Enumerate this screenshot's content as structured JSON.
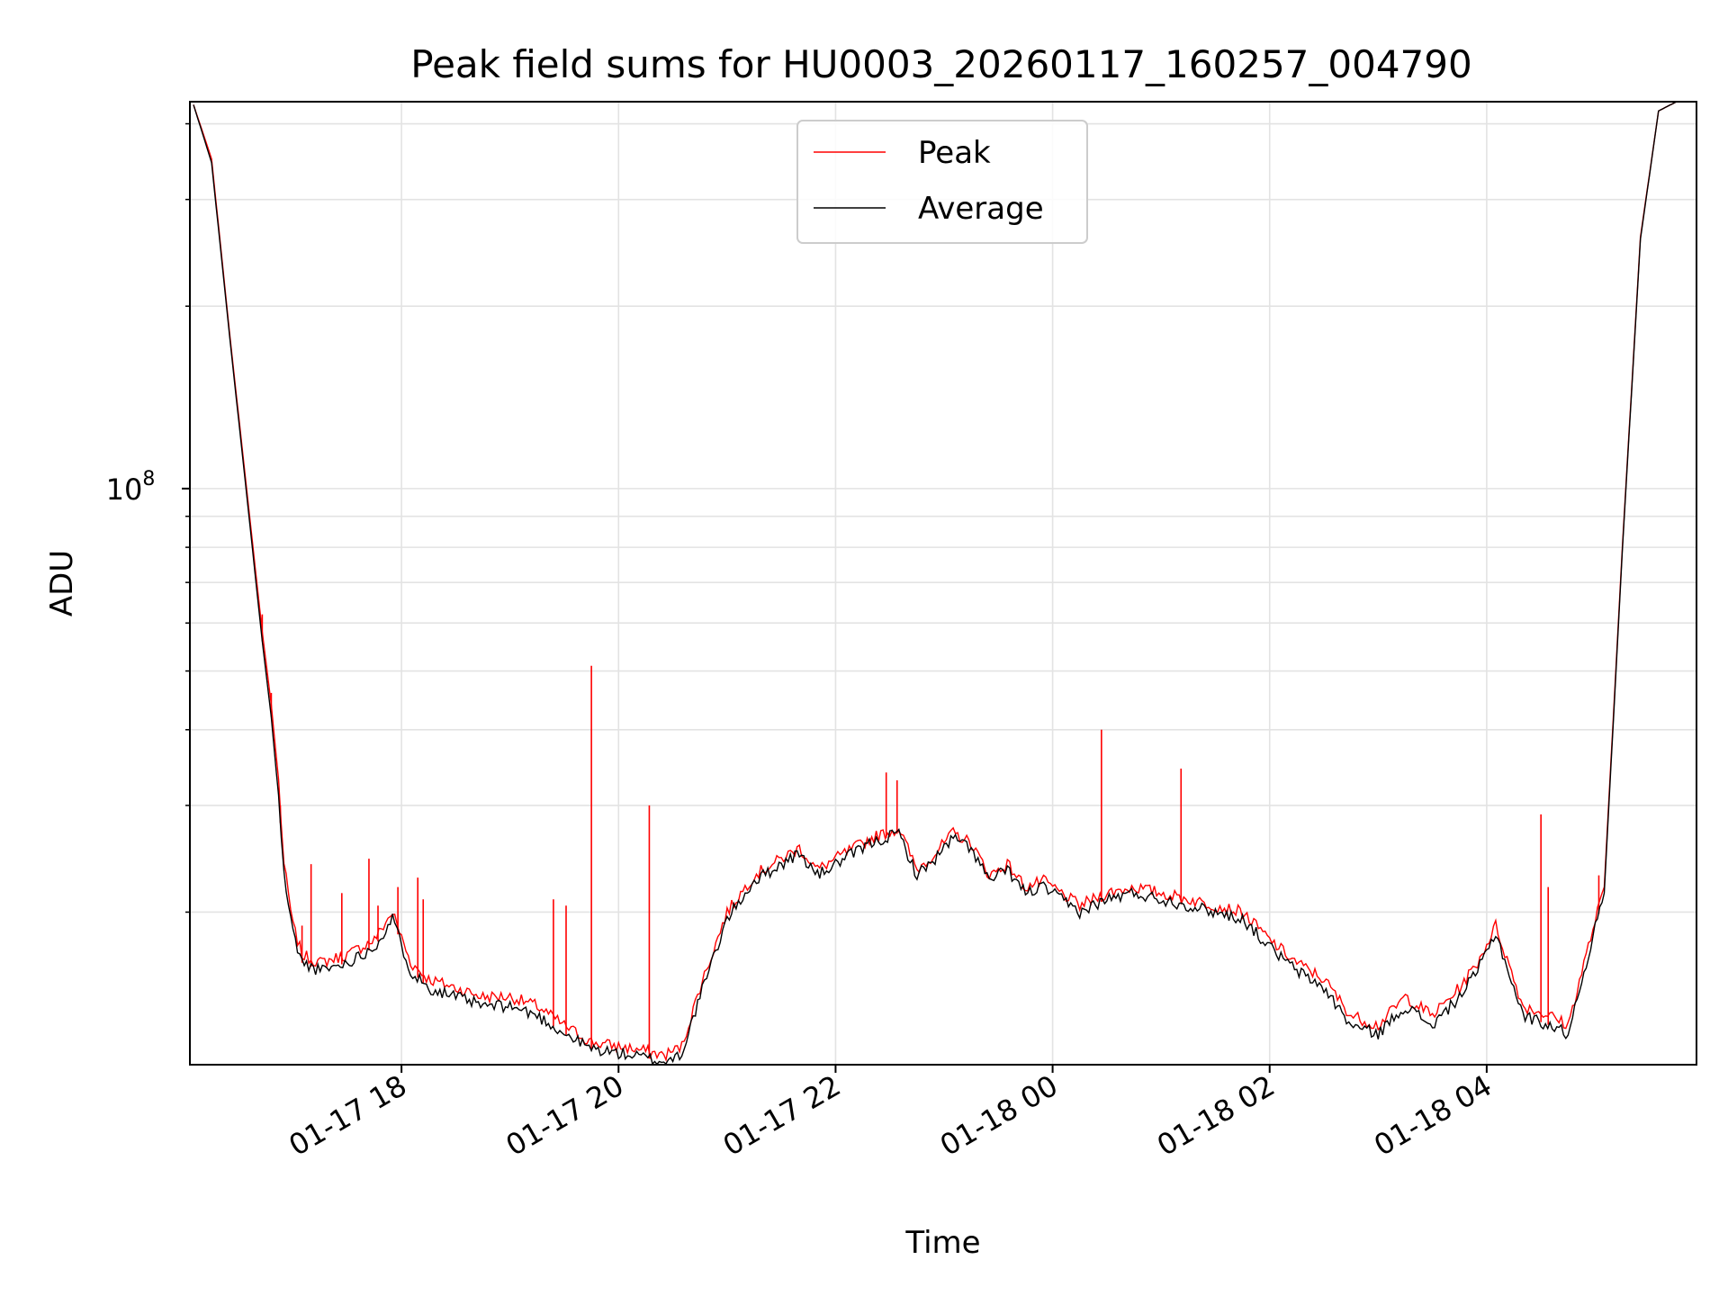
{
  "chart_data": {
    "type": "line",
    "title": "Peak field sums for HU0003_20260117_160257_004790",
    "xlabel": "Time",
    "ylabel": "ADU",
    "y_scale": "log",
    "xlim": [
      "2026-01-17 16:03",
      "2026-01-18 05:56"
    ],
    "ylim": [
      11200000,
      435000000
    ],
    "grid": true,
    "legend_position": "upper center",
    "x_ticks": [
      {
        "value": "2026-01-17 18:00",
        "label": "01-17 18"
      },
      {
        "value": "2026-01-17 20:00",
        "label": "01-17 20"
      },
      {
        "value": "2026-01-17 22:00",
        "label": "01-17 22"
      },
      {
        "value": "2026-01-18 00:00",
        "label": "01-18 00"
      },
      {
        "value": "2026-01-18 02:00",
        "label": "01-18 02"
      },
      {
        "value": "2026-01-18 04:00",
        "label": "01-18 04"
      }
    ],
    "y_major_ticks": [
      {
        "value": 100000000,
        "base": "10",
        "exp": "8"
      }
    ],
    "y_minor_ticks": [
      20000000,
      30000000,
      40000000,
      50000000,
      60000000,
      70000000,
      80000000,
      90000000,
      200000000,
      300000000,
      400000000
    ],
    "series": [
      {
        "name": "Peak",
        "color": "#ff0000",
        "x": [
          "2026-01-17 16:05",
          "2026-01-17 16:15",
          "2026-01-17 16:25",
          "2026-01-17 16:35",
          "2026-01-17 16:43",
          "2026-01-17 16:48",
          "2026-01-17 16:52",
          "2026-01-17 16:55",
          "2026-01-17 17:00",
          "2026-01-17 17:05",
          "2026-01-17 17:15",
          "2026-01-17 17:30",
          "2026-01-17 17:45",
          "2026-01-17 17:55",
          "2026-01-17 18:05",
          "2026-01-17 18:15",
          "2026-01-17 18:30",
          "2026-01-17 18:45",
          "2026-01-17 19:00",
          "2026-01-17 19:15",
          "2026-01-17 19:30",
          "2026-01-17 19:45",
          "2026-01-17 20:00",
          "2026-01-17 20:15",
          "2026-01-17 20:25",
          "2026-01-17 20:35",
          "2026-01-17 20:45",
          "2026-01-17 21:00",
          "2026-01-17 21:15",
          "2026-01-17 21:30",
          "2026-01-17 21:40",
          "2026-01-17 21:50",
          "2026-01-17 22:05",
          "2026-01-17 22:20",
          "2026-01-17 22:35",
          "2026-01-17 22:45",
          "2026-01-17 22:55",
          "2026-01-17 23:05",
          "2026-01-17 23:15",
          "2026-01-17 23:25",
          "2026-01-17 23:35",
          "2026-01-17 23:45",
          "2026-01-17 23:55",
          "2026-01-18 00:15",
          "2026-01-18 00:30",
          "2026-01-18 00:45",
          "2026-01-18 01:00",
          "2026-01-18 01:15",
          "2026-01-18 01:30",
          "2026-01-18 01:45",
          "2026-01-18 02:00",
          "2026-01-18 02:15",
          "2026-01-18 02:30",
          "2026-01-18 02:45",
          "2026-01-18 03:00",
          "2026-01-18 03:15",
          "2026-01-18 03:30",
          "2026-01-18 03:45",
          "2026-01-18 03:55",
          "2026-01-18 04:05",
          "2026-01-18 04:20",
          "2026-01-18 04:35",
          "2026-01-18 04:45",
          "2026-01-18 04:55",
          "2026-01-18 05:05",
          "2026-01-18 05:15",
          "2026-01-18 05:25",
          "2026-01-18 05:35",
          "2026-01-18 05:45",
          "2026-01-18 05:55"
        ],
        "y": [
          430000000,
          350000000,
          180000000,
          96000000,
          58000000,
          44000000,
          33000000,
          24000000,
          19000000,
          17000000,
          16500000,
          17000000,
          18000000,
          20000000,
          16500000,
          15500000,
          15000000,
          14500000,
          14500000,
          14000000,
          13000000,
          12200000,
          12000000,
          11800000,
          11600000,
          12000000,
          15000000,
          20000000,
          23000000,
          24500000,
          25500000,
          23500000,
          25000000,
          26500000,
          27500000,
          23500000,
          25000000,
          27000000,
          26000000,
          23000000,
          24000000,
          22000000,
          22500000,
          20500000,
          21500000,
          22000000,
          21500000,
          21000000,
          20500000,
          20000000,
          18000000,
          16500000,
          15500000,
          13500000,
          13000000,
          14500000,
          13500000,
          15000000,
          16500000,
          19000000,
          14000000,
          13500000,
          13000000,
          17000000,
          22000000,
          80000000,
          260000000,
          420000000,
          435000000,
          435000000
        ]
      },
      {
        "name": "Average",
        "color": "#000000",
        "x": [
          "2026-01-17 16:05",
          "2026-01-17 16:15",
          "2026-01-17 16:25",
          "2026-01-17 16:35",
          "2026-01-17 16:43",
          "2026-01-17 16:48",
          "2026-01-17 16:52",
          "2026-01-17 16:55",
          "2026-01-17 17:00",
          "2026-01-17 17:05",
          "2026-01-17 17:15",
          "2026-01-17 17:30",
          "2026-01-17 17:45",
          "2026-01-17 17:55",
          "2026-01-17 18:05",
          "2026-01-17 18:15",
          "2026-01-17 18:30",
          "2026-01-17 18:45",
          "2026-01-17 19:00",
          "2026-01-17 19:15",
          "2026-01-17 19:30",
          "2026-01-17 19:45",
          "2026-01-17 20:00",
          "2026-01-17 20:15",
          "2026-01-17 20:25",
          "2026-01-17 20:35",
          "2026-01-17 20:45",
          "2026-01-17 21:00",
          "2026-01-17 21:15",
          "2026-01-17 21:30",
          "2026-01-17 21:40",
          "2026-01-17 21:50",
          "2026-01-17 22:05",
          "2026-01-17 22:20",
          "2026-01-17 22:35",
          "2026-01-17 22:45",
          "2026-01-17 22:55",
          "2026-01-17 23:05",
          "2026-01-17 23:15",
          "2026-01-17 23:25",
          "2026-01-17 23:35",
          "2026-01-17 23:45",
          "2026-01-17 23:55",
          "2026-01-18 00:15",
          "2026-01-18 00:30",
          "2026-01-18 00:45",
          "2026-01-18 01:00",
          "2026-01-18 01:15",
          "2026-01-18 01:30",
          "2026-01-18 01:45",
          "2026-01-18 02:00",
          "2026-01-18 02:15",
          "2026-01-18 02:30",
          "2026-01-18 02:45",
          "2026-01-18 03:00",
          "2026-01-18 03:15",
          "2026-01-18 03:30",
          "2026-01-18 03:45",
          "2026-01-18 03:55",
          "2026-01-18 04:05",
          "2026-01-18 04:20",
          "2026-01-18 04:35",
          "2026-01-18 04:45",
          "2026-01-18 04:55",
          "2026-01-18 05:05",
          "2026-01-18 05:15",
          "2026-01-18 05:25",
          "2026-01-18 05:35",
          "2026-01-18 05:45",
          "2026-01-18 05:55"
        ],
        "y": [
          430000000,
          345000000,
          178000000,
          94000000,
          56000000,
          42000000,
          31000000,
          23000000,
          18500000,
          16500000,
          16000000,
          16500000,
          17500000,
          19500000,
          16000000,
          15000000,
          14500000,
          14000000,
          14000000,
          13500000,
          12600000,
          11900000,
          11700000,
          11500000,
          11300000,
          11700000,
          14500000,
          19500000,
          22500000,
          24000000,
          25000000,
          23000000,
          24500000,
          26000000,
          27000000,
          23000000,
          24500000,
          26500000,
          25500000,
          22500000,
          23500000,
          21500000,
          22000000,
          20000000,
          21000000,
          21500000,
          21000000,
          20500000,
          20000000,
          19500000,
          17500000,
          16000000,
          15000000,
          13000000,
          12600000,
          14000000,
          13000000,
          14500000,
          16000000,
          18500000,
          13500000,
          13000000,
          12600000,
          16500000,
          21500000,
          79000000,
          258000000,
          420000000,
          435000000,
          435000000
        ]
      }
    ],
    "peak_spikes": [
      {
        "x": "2026-01-17 16:43",
        "y": 62000000
      },
      {
        "x": "2026-01-17 16:48",
        "y": 46000000
      },
      {
        "x": "2026-01-17 16:53",
        "y": 30000000
      },
      {
        "x": "2026-01-17 17:05",
        "y": 19000000
      },
      {
        "x": "2026-01-17 17:10",
        "y": 24000000
      },
      {
        "x": "2026-01-17 17:27",
        "y": 21500000
      },
      {
        "x": "2026-01-17 17:42",
        "y": 24500000
      },
      {
        "x": "2026-01-17 17:47",
        "y": 20500000
      },
      {
        "x": "2026-01-17 17:58",
        "y": 22000000
      },
      {
        "x": "2026-01-17 18:09",
        "y": 22800000
      },
      {
        "x": "2026-01-17 18:12",
        "y": 21000000
      },
      {
        "x": "2026-01-17 19:24",
        "y": 21000000
      },
      {
        "x": "2026-01-17 19:31",
        "y": 20500000
      },
      {
        "x": "2026-01-17 19:45",
        "y": 51000000
      },
      {
        "x": "2026-01-17 20:17",
        "y": 30000000
      },
      {
        "x": "2026-01-17 22:28",
        "y": 34000000
      },
      {
        "x": "2026-01-17 22:34",
        "y": 33000000
      },
      {
        "x": "2026-01-18 00:27",
        "y": 40000000
      },
      {
        "x": "2026-01-18 01:11",
        "y": 34500000
      },
      {
        "x": "2026-01-18 04:30",
        "y": 29000000
      },
      {
        "x": "2026-01-18 04:34",
        "y": 22000000
      },
      {
        "x": "2026-01-18 05:02",
        "y": 23000000
      }
    ]
  }
}
